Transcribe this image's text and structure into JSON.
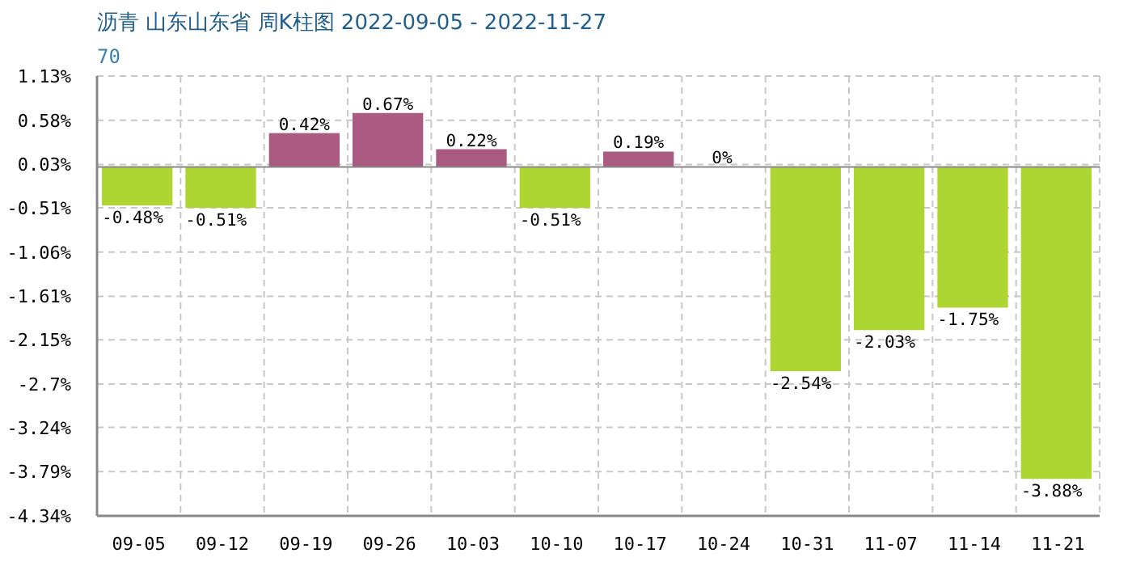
{
  "chart_data": {
    "type": "bar",
    "title": "沥青 山东山东省 周K柱图 2022-09-05 - 2022-11-27",
    "subtitle": "70",
    "categories": [
      "09-05",
      "09-12",
      "09-19",
      "09-26",
      "10-03",
      "10-10",
      "10-17",
      "10-24",
      "10-31",
      "11-07",
      "11-14",
      "11-21"
    ],
    "values": [
      -0.48,
      -0.51,
      0.42,
      0.67,
      0.22,
      -0.51,
      0.19,
      0,
      -2.54,
      -2.03,
      -1.75,
      -3.88
    ],
    "colors": [
      "#add633",
      "#add633",
      "#ab5a82",
      "#ab5a82",
      "#ab5a82",
      "#add633",
      "#ab5a82",
      "#ab5a82",
      "#add633",
      "#add633",
      "#add633",
      "#add633"
    ],
    "value_labels": [
      "-0.48%",
      "-0.51%",
      "0.42%",
      "0.67%",
      "0.22%",
      "-0.51%",
      "0.19%",
      "0%",
      "-2.54%",
      "-2.03%",
      "-1.75%",
      "-3.88%"
    ],
    "ylim": [
      -4.34,
      1.13
    ],
    "yticks": [
      {
        "value": 1.13,
        "label": "1.13%"
      },
      {
        "value": 0.58,
        "label": "0.58%"
      },
      {
        "value": 0.03,
        "label": "0.03%"
      },
      {
        "value": -0.51,
        "label": "-0.51%"
      },
      {
        "value": -1.06,
        "label": "-1.06%"
      },
      {
        "value": -1.61,
        "label": "-1.61%"
      },
      {
        "value": -2.15,
        "label": "-2.15%"
      },
      {
        "value": -2.7,
        "label": "-2.7%"
      },
      {
        "value": -3.24,
        "label": "-3.24%"
      },
      {
        "value": -3.79,
        "label": "-3.79%"
      },
      {
        "value": -4.34,
        "label": "-4.34%"
      }
    ],
    "grid": true
  }
}
